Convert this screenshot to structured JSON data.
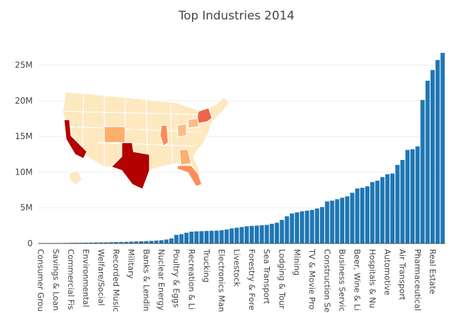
{
  "chart_data": {
    "type": "bar",
    "title": "Top Industries 2014",
    "color": "#1f77b4",
    "grid": true,
    "ylim": [
      0,
      26800000
    ],
    "yticks": [
      0,
      {
        "value": 5000000,
        "label": "5M"
      },
      {
        "value": 10000000,
        "label": "10M"
      },
      {
        "value": 15000000,
        "label": "15M"
      },
      {
        "value": 20000000,
        "label": "20M"
      },
      {
        "value": 25000000,
        "label": "25M"
      }
    ],
    "categories": [
      "Consumer Grou",
      null,
      null,
      "Savings & Loan",
      null,
      null,
      "Commercial Fis",
      null,
      null,
      "Environmental",
      null,
      null,
      "Welfare/Social",
      null,
      null,
      "Recorded Music",
      null,
      null,
      "Military",
      null,
      null,
      "Banks & Lendin",
      null,
      null,
      "Nuclear Energy",
      null,
      null,
      "Poultry & Eggs",
      null,
      null,
      "Recreation & Li",
      null,
      null,
      "Trucking",
      null,
      null,
      "Electronics Man",
      null,
      null,
      "Livestock",
      null,
      null,
      "Forestry & Fore",
      null,
      null,
      "Sea Transport",
      null,
      null,
      "Lodging & Tour",
      null,
      null,
      "Mining",
      null,
      null,
      "TV & Movie Pro",
      null,
      null,
      "Construction Se",
      null,
      null,
      "Business Servic",
      null,
      null,
      "Beer, Wine & Li",
      null,
      null,
      "Hospitals & Nu",
      null,
      null,
      "Automotive",
      null,
      null,
      "Air Transport",
      null,
      null,
      "Pharmaceutical",
      null,
      null,
      "Real Estate",
      null,
      null
    ],
    "values": [
      20000,
      30000,
      40000,
      50000,
      60000,
      70000,
      80000,
      90000,
      100000,
      110000,
      120000,
      130000,
      140000,
      150000,
      170000,
      190000,
      200000,
      220000,
      250000,
      280000,
      300000,
      330000,
      360000,
      400000,
      450000,
      550000,
      700000,
      1200000,
      1300000,
      1500000,
      1650000,
      1700000,
      1720000,
      1750000,
      1780000,
      1800000,
      1850000,
      1950000,
      2100000,
      2200000,
      2300000,
      2400000,
      2450000,
      2500000,
      2550000,
      2600000,
      2750000,
      2900000,
      3300000,
      3800000,
      4200000,
      4350000,
      4500000,
      4600000,
      4700000,
      4900000,
      5100000,
      5900000,
      6000000,
      6200000,
      6400000,
      6600000,
      7100000,
      7700000,
      7800000,
      8000000,
      8600000,
      8800000,
      9300000,
      9700000,
      9800000,
      11000000,
      11700000,
      13100000,
      13200000,
      13600000,
      20100000,
      22800000,
      24300000,
      25700000,
      26700000
    ]
  }
}
